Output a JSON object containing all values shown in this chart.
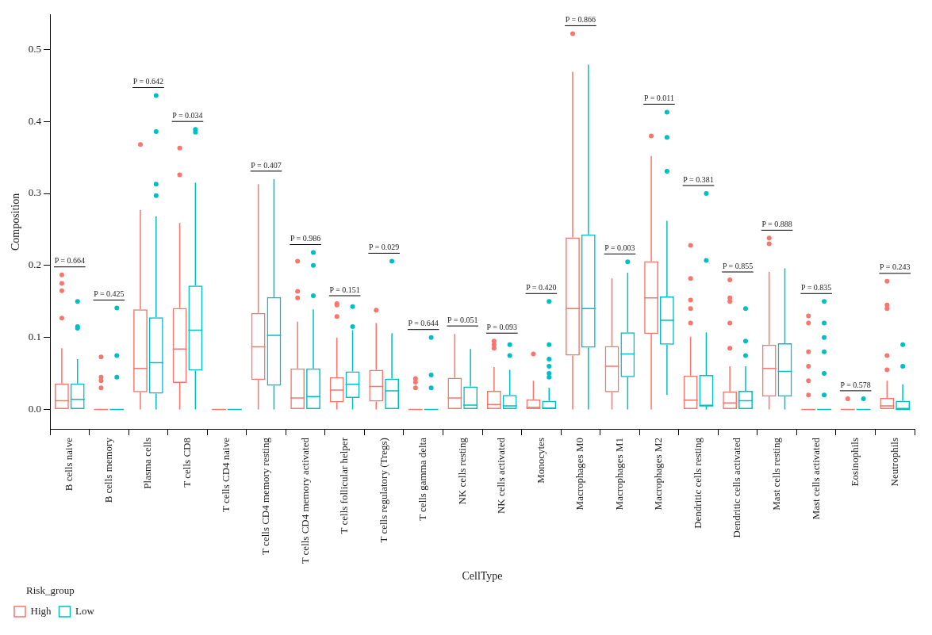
{
  "chart_data": {
    "type": "box",
    "xlabel": "CellType",
    "ylabel": "Composition",
    "legend_title": "Risk_group",
    "legend": "bottom",
    "grid": false,
    "marker": "circle",
    "categories": [
      "B cells naive",
      "B cells memory",
      "Plasma cells",
      "T cells CD8",
      "T cells CD4 naive",
      "T cells CD4 memory resting",
      "T cells CD4 memory activated",
      "T cells follicular helper",
      "T cells regulatory (Tregs)",
      "T cells gamma delta",
      "NK cells resting",
      "NK cells activated",
      "Monocytes",
      "Macrophages M0",
      "Macrophages M1",
      "Macrophages M2",
      "Dendritic cells resting",
      "Dendritic cells activated",
      "Mast cells resting",
      "Mast cells activated",
      "Eosinophils",
      "Neutrophils"
    ],
    "ylim": [
      -0.027,
      0.548
    ],
    "yticks": [
      {
        "value": 0,
        "label": "0.0"
      },
      0.1,
      0.2,
      0.3,
      0.4,
      0.5
    ],
    "series": [
      {
        "name": "High",
        "color": "#f8766d",
        "boxes": [
          {
            "low": 0,
            "q1": 0,
            "median": 0.012,
            "q3": 0.036,
            "high": 0.085,
            "outliers": [
              0.127,
              0.165,
              0.175,
              0.187
            ]
          },
          {
            "low": 0,
            "q1": 0,
            "median": 0,
            "q3": 0,
            "high": 0,
            "outliers": [
              0.03,
              0.04,
              0.045,
              0.073
            ]
          },
          {
            "low": 0,
            "q1": 0.024,
            "median": 0.057,
            "q3": 0.139,
            "high": 0.277,
            "outliers": [
              0.368
            ]
          },
          {
            "low": 0,
            "q1": 0.037,
            "median": 0.084,
            "q3": 0.141,
            "high": 0.259,
            "outliers": [
              0.326,
              0.363
            ]
          },
          {
            "low": 0,
            "q1": 0,
            "median": 0,
            "q3": 0,
            "high": 0
          },
          {
            "low": 0,
            "q1": 0.041,
            "median": 0.087,
            "q3": 0.134,
            "high": 0.313
          },
          {
            "low": 0,
            "q1": 0,
            "median": 0.016,
            "q3": 0.057,
            "high": 0.122,
            "outliers": [
              0.155,
              0.164,
              0.206
            ]
          },
          {
            "low": 0,
            "q1": 0.01,
            "median": 0.027,
            "q3": 0.045,
            "high": 0.1,
            "outliers": [
              0.129,
              0.145,
              0.147
            ]
          },
          {
            "low": 0,
            "q1": 0.011,
            "median": 0.032,
            "q3": 0.055,
            "high": 0.12,
            "outliers": [
              0.138
            ]
          },
          {
            "low": 0,
            "q1": 0,
            "median": 0,
            "q3": 0,
            "high": 0,
            "outliers": [
              0.03,
              0.038,
              0.043
            ]
          },
          {
            "low": 0,
            "q1": 0,
            "median": 0.016,
            "q3": 0.044,
            "high": 0.105
          },
          {
            "low": 0,
            "q1": 0,
            "median": 0.007,
            "q3": 0.026,
            "high": 0.059,
            "outliers": [
              0.085,
              0.09,
              0.095
            ]
          },
          {
            "low": 0,
            "q1": 0,
            "median": 0.003,
            "q3": 0.014,
            "high": 0.04,
            "outliers": [
              0.077
            ]
          },
          {
            "low": 0,
            "q1": 0.075,
            "median": 0.14,
            "q3": 0.239,
            "high": 0.469,
            "outliers": [
              0.522
            ]
          },
          {
            "low": 0,
            "q1": 0.024,
            "median": 0.06,
            "q3": 0.088,
            "high": 0.182
          },
          {
            "low": 0,
            "q1": 0.105,
            "median": 0.155,
            "q3": 0.206,
            "high": 0.352,
            "outliers": [
              0.38
            ]
          },
          {
            "low": 0,
            "q1": 0,
            "median": 0.013,
            "q3": 0.047,
            "high": 0.101,
            "outliers": [
              0.12,
              0.14,
              0.152,
              0.182,
              0.228
            ]
          },
          {
            "low": 0,
            "q1": 0,
            "median": 0.009,
            "q3": 0.025,
            "high": 0.06,
            "outliers": [
              0.085,
              0.12,
              0.15,
              0.155,
              0.18
            ]
          },
          {
            "low": 0,
            "q1": 0.018,
            "median": 0.057,
            "q3": 0.09,
            "high": 0.191,
            "outliers": [
              0.23,
              0.238
            ]
          },
          {
            "low": 0,
            "q1": 0,
            "median": 0,
            "q3": 0,
            "high": 0,
            "outliers": [
              0.02,
              0.04,
              0.06,
              0.08,
              0.12,
              0.13
            ]
          },
          {
            "low": 0,
            "q1": 0,
            "median": 0,
            "q3": 0,
            "high": 0,
            "outliers": [
              0.015
            ]
          },
          {
            "low": 0,
            "q1": 0,
            "median": 0.005,
            "q3": 0.016,
            "high": 0.04,
            "outliers": [
              0.055,
              0.075,
              0.14,
              0.145,
              0.178
            ]
          }
        ]
      },
      {
        "name": "Low",
        "color": "#00bfc4",
        "boxes": [
          {
            "low": 0,
            "q1": 0,
            "median": 0.014,
            "q3": 0.036,
            "high": 0.07,
            "outliers": [
              0.113,
              0.115,
              0.15
            ]
          },
          {
            "low": 0,
            "q1": 0,
            "median": 0,
            "q3": 0,
            "high": 0,
            "outliers": [
              0.045,
              0.075,
              0.141
            ]
          },
          {
            "low": 0,
            "q1": 0.022,
            "median": 0.065,
            "q3": 0.128,
            "high": 0.268,
            "outliers": [
              0.297,
              0.313,
              0.386,
              0.436
            ]
          },
          {
            "low": 0,
            "q1": 0.054,
            "median": 0.11,
            "q3": 0.172,
            "high": 0.315,
            "outliers": [
              0.385,
              0.389
            ]
          },
          {
            "low": 0,
            "q1": 0,
            "median": 0,
            "q3": 0,
            "high": 0
          },
          {
            "low": 0,
            "q1": 0.033,
            "median": 0.103,
            "q3": 0.156,
            "high": 0.32
          },
          {
            "low": 0,
            "q1": 0,
            "median": 0.018,
            "q3": 0.057,
            "high": 0.139,
            "outliers": [
              0.158,
              0.2,
              0.218
            ]
          },
          {
            "low": 0,
            "q1": 0.016,
            "median": 0.035,
            "q3": 0.053,
            "high": 0.11,
            "outliers": [
              0.115,
              0.143
            ]
          },
          {
            "low": 0,
            "q1": 0,
            "median": 0.026,
            "q3": 0.043,
            "high": 0.106,
            "outliers": [
              0.206
            ]
          },
          {
            "low": 0,
            "q1": 0,
            "median": 0,
            "q3": 0,
            "high": 0,
            "outliers": [
              0.03,
              0.048,
              0.1
            ]
          },
          {
            "low": 0,
            "q1": 0,
            "median": 0.006,
            "q3": 0.032,
            "high": 0.084
          },
          {
            "low": 0,
            "q1": 0,
            "median": 0.005,
            "q3": 0.02,
            "high": 0.055,
            "outliers": [
              0.075,
              0.09
            ]
          },
          {
            "low": 0,
            "q1": 0,
            "median": 0.002,
            "q3": 0.012,
            "high": 0.03,
            "outliers": [
              0.045,
              0.05,
              0.06,
              0.07,
              0.09,
              0.15
            ]
          },
          {
            "low": 0,
            "q1": 0.086,
            "median": 0.14,
            "q3": 0.243,
            "high": 0.479
          },
          {
            "low": 0,
            "q1": 0.045,
            "median": 0.077,
            "q3": 0.107,
            "high": 0.19,
            "outliers": [
              0.205
            ]
          },
          {
            "low": 0.02,
            "q1": 0.09,
            "median": 0.124,
            "q3": 0.157,
            "high": 0.262,
            "outliers": [
              0.331,
              0.378,
              0.413
            ]
          },
          {
            "low": 0,
            "q1": 0.005,
            "median": 0.005,
            "q3": 0.048,
            "high": 0.107,
            "outliers": [
              0.207,
              0.3
            ]
          },
          {
            "low": 0,
            "q1": 0,
            "median": 0.012,
            "q3": 0.026,
            "high": 0.06,
            "outliers": [
              0.075,
              0.095,
              0.14
            ]
          },
          {
            "low": 0,
            "q1": 0.018,
            "median": 0.053,
            "q3": 0.092,
            "high": 0.196
          },
          {
            "low": 0,
            "q1": 0,
            "median": 0,
            "q3": 0,
            "high": 0,
            "outliers": [
              0.02,
              0.05,
              0.08,
              0.1,
              0.12,
              0.15
            ]
          },
          {
            "low": 0,
            "q1": 0,
            "median": 0,
            "q3": 0,
            "high": 0,
            "outliers": [
              0.015
            ]
          },
          {
            "low": 0,
            "q1": 0,
            "median": 0,
            "q3": 0.012,
            "high": 0.035,
            "outliers": [
              0.06,
              0.09
            ]
          }
        ]
      }
    ],
    "annotations": [
      "P = 0.664",
      "P = 0.425",
      "P = 0.642",
      "P = 0.034",
      "P = 0.407",
      "P = 0.986",
      "P = 0.151",
      "P = 0.029",
      "P = 0.644",
      "P = 0.051",
      "P = 0.093",
      "P = 0.420",
      "P = 0.866",
      "P = 0.003",
      "P = 0.011",
      "P = 0.381",
      "P = 0.855",
      "P = 0.888",
      "P = 0.835",
      "P = 0.578",
      "P = 0.243"
    ]
  }
}
